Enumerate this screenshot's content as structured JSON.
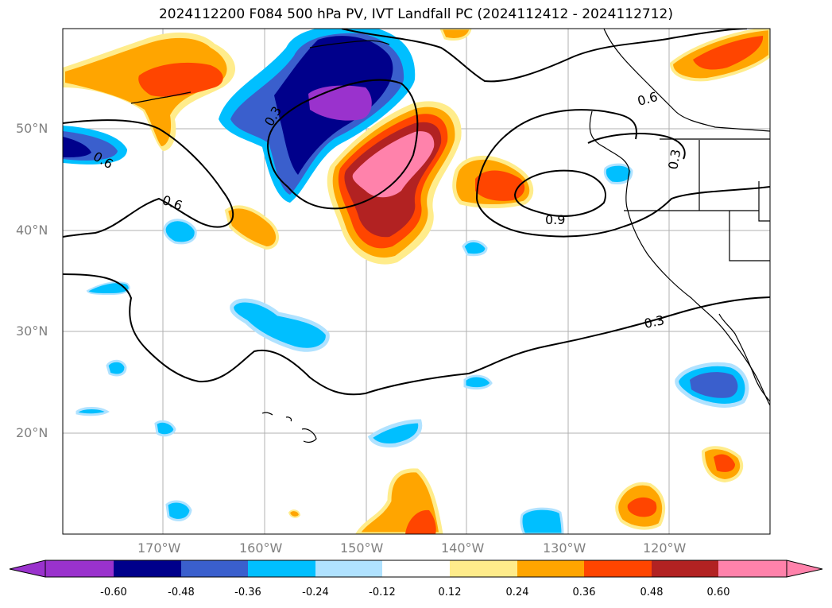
{
  "title": "2024112200 F084 500 hPa PV, IVT Landfall PC (2024112412 - 2024112712)",
  "latitude_labels": [
    "50°N",
    "40°N",
    "30°N",
    "20°N"
  ],
  "longitude_labels": [
    "170°W",
    "160°W",
    "150°W",
    "140°W",
    "130°W",
    "120°W"
  ],
  "contour_labels": [
    "0.6",
    "0.6",
    "0.3",
    "0.6",
    "0.9",
    "0.3",
    "0.3"
  ],
  "colorbar": {
    "ticks": [
      "-0.60",
      "-0.48",
      "-0.36",
      "-0.24",
      "-0.12",
      "0.12",
      "0.24",
      "0.36",
      "0.48",
      "0.60"
    ],
    "colors": [
      "#9a32cd",
      "#00008b",
      "#3a5fcd",
      "#00bfff",
      "#b0e2ff",
      "#ffffff",
      "#ffec8b",
      "#ffa500",
      "#ff4500",
      "#b22222",
      "#ff82ab"
    ]
  }
}
